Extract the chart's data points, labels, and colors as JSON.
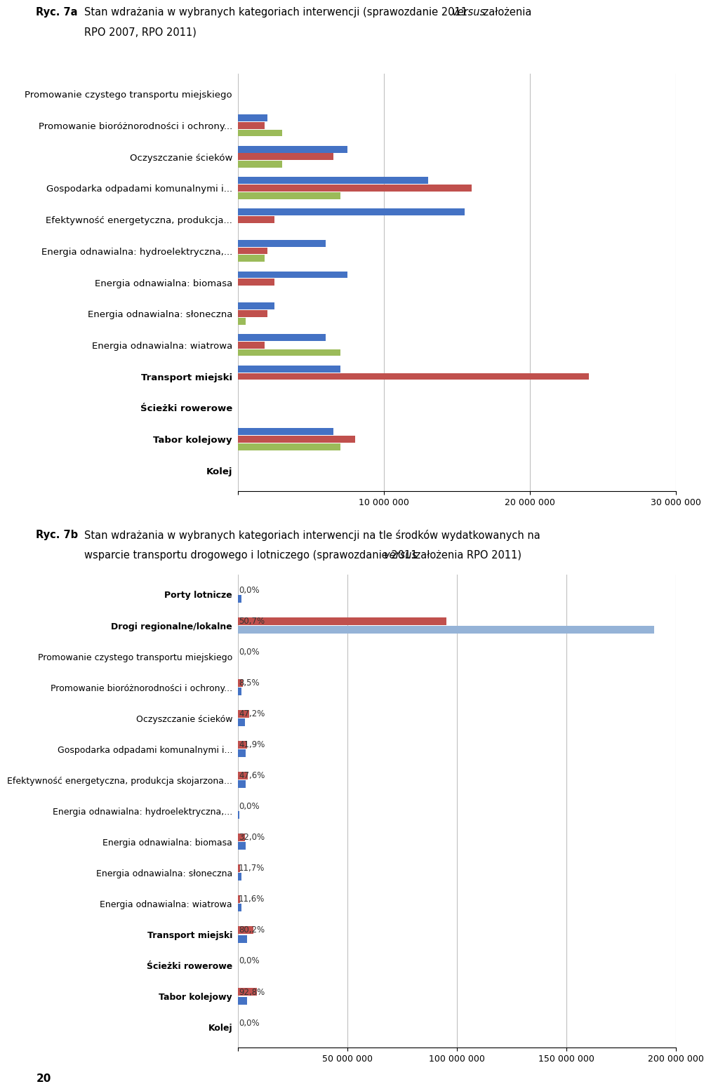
{
  "chart_a": {
    "categories": [
      "Promowanie czystego transportu miejskiego",
      "Promowanie bioróżnorodności i ochrony...",
      "Oczyszczanie ścieków",
      "Gospodarka odpadami komunalnymi i...",
      "Efektywność energetyczna, produkcja...",
      "Energia odnawialna: hydroelektryczna,...",
      "Energia odnawialna: biomasa",
      "Energia odnawialna: słoneczna",
      "Energia odnawialna: wiatrowa",
      "Transport miejski",
      "Ścieżki rowerowe",
      "Tabor kolejowy",
      "Kolej"
    ],
    "bold_cats": [
      "Transport miejski",
      "Ścieżki rowerowe",
      "Tabor kolejowy",
      "Kolej"
    ],
    "series": {
      "blue": [
        0,
        2000000,
        7500000,
        13000000,
        15500000,
        6000000,
        7500000,
        2500000,
        6000000,
        7000000,
        0,
        6500000,
        0
      ],
      "red": [
        0,
        1800000,
        6500000,
        16000000,
        2500000,
        2000000,
        2500000,
        2000000,
        1800000,
        24000000,
        0,
        8000000,
        0
      ],
      "green": [
        0,
        3000000,
        3000000,
        7000000,
        0,
        1800000,
        0,
        500000,
        7000000,
        0,
        0,
        7000000,
        0
      ]
    },
    "colors": {
      "blue": "#4472C4",
      "red": "#C0504D",
      "green": "#9BBB59"
    },
    "xlim": [
      0,
      30000000
    ],
    "xticks": [
      0,
      10000000,
      20000000,
      30000000
    ],
    "xticklabels": [
      "",
      "10 000 000",
      "20 000 000",
      "30 000 000"
    ]
  },
  "chart_b": {
    "categories": [
      "Porty lotnicze",
      "Drogi regionalne/lokalne",
      "Promowanie czystego transportu miejskiego",
      "Promowanie bioróżnorodności i ochrony...",
      "Oczyszczanie ścieków",
      "Gospodarka odpadami komunalnymi i...",
      "Efektywność energetyczna, produkcja skojarzona...",
      "Energia odnawialna: hydroelektryczna,...",
      "Energia odnawialna: biomasa",
      "Energia odnawialna: słoneczna",
      "Energia odnawialna: wiatrowa",
      "Transport miejski",
      "Ścieżki rowerowe",
      "Tabor kolejowy",
      "Kolej"
    ],
    "bold_cats": [
      "Transport miejski",
      "Ścieżki rowerowe",
      "Tabor kolejowy",
      "Kolej",
      "Drogi regionalne/lokalne",
      "Porty lotnicze"
    ],
    "percentages": [
      "0,0%",
      "50,7%",
      "0,0%",
      "8,5%",
      "47,2%",
      "41,9%",
      "47,6%",
      "0,0%",
      "32,0%",
      "11,7%",
      "11,6%",
      "80,2%",
      "0,0%",
      "92,8%",
      "0,0%"
    ],
    "series": {
      "red": [
        0,
        95000000,
        0,
        2000000,
        5000000,
        4000000,
        4500000,
        0,
        3000000,
        1000000,
        1000000,
        7000000,
        0,
        8500000,
        0
      ],
      "blue": [
        1500000,
        0,
        0,
        1500000,
        3000000,
        3500000,
        3500000,
        500000,
        3500000,
        1500000,
        1500000,
        4000000,
        0,
        4000000,
        0
      ],
      "gray": [
        0,
        190000000,
        0,
        0,
        0,
        0,
        0,
        0,
        0,
        0,
        0,
        0,
        0,
        0,
        0
      ]
    },
    "colors": {
      "red": "#C0504D",
      "blue": "#4472C4",
      "gray": "#95B3D7"
    },
    "xlim": [
      0,
      200000000
    ],
    "xticks": [
      0,
      50000000,
      100000000,
      150000000,
      200000000
    ],
    "xticklabels": [
      "",
      "50 000 000",
      "100 000 000",
      "150 000 000",
      "200 000 000"
    ]
  },
  "title_a_bold": "Ryc. 7a",
  "title_a_rest": " Stan wdrażania w wybranych kategoriach interwencji (sprawozdanie 2011 ",
  "title_a_italic": "versus",
  "title_a_end": " założenia",
  "title_a_line2": "RPO 2007, RPO 2011)",
  "title_b_bold": "Ryc. 7b",
  "title_b_rest": " Stan wdrażania w wybranych kategoriach interwencji na tle środków wydatkowanych na",
  "title_b_line2_start": "wsparcie transportu drogowego i lotniczego (sprawozdanie 2011 ",
  "title_b_italic": "versus",
  "title_b_line2_end": " założenia RPO 2011)",
  "page_number": "20",
  "background_color": "#FFFFFF"
}
